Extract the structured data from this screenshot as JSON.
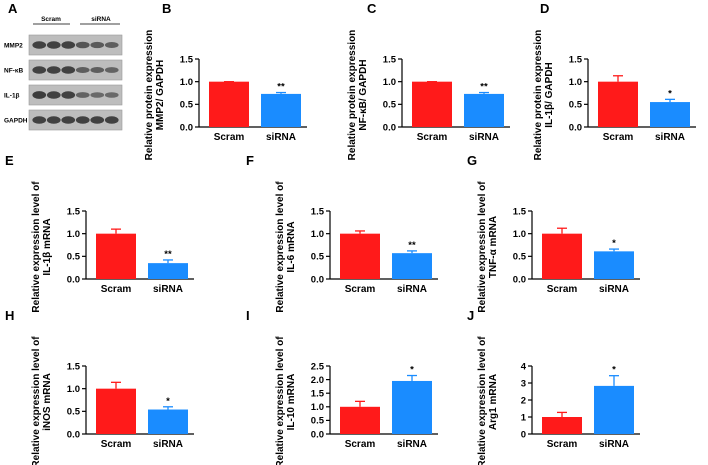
{
  "colors": {
    "scram": "#ff1a1a",
    "sirna": "#1a8cff",
    "axis": "#000000",
    "blot_bg": "#bdbdbd",
    "band": "#303030"
  },
  "blot": {
    "letter": "A",
    "groups": [
      "Scram",
      "siRNA"
    ],
    "rows": [
      {
        "label": "MMP2",
        "intensity": [
          0.9,
          0.9,
          0.9,
          0.7,
          0.65,
          0.6
        ]
      },
      {
        "label": "NF-κB",
        "intensity": [
          0.9,
          0.9,
          0.9,
          0.6,
          0.6,
          0.55
        ]
      },
      {
        "label": "IL-1β",
        "intensity": [
          0.95,
          0.9,
          0.9,
          0.55,
          0.5,
          0.5
        ]
      },
      {
        "label": "GAPDH",
        "intensity": [
          0.9,
          0.9,
          0.9,
          0.9,
          0.9,
          0.9
        ]
      }
    ]
  },
  "chart_data": [
    {
      "letter": "B",
      "type": "bar",
      "title": "",
      "ylabel": [
        "Relative protein expression",
        "MMP2/ GAPDH"
      ],
      "xlabel": "",
      "categories": [
        "Scram",
        "siRNA"
      ],
      "values": [
        1.0,
        0.73
      ],
      "errors": [
        0.0,
        0.03
      ],
      "annotations": [
        "",
        "**"
      ],
      "ylim": [
        0,
        1.5
      ],
      "yticks": [
        "0.0",
        "0.5",
        "1.0",
        "1.5"
      ]
    },
    {
      "letter": "C",
      "type": "bar",
      "title": "",
      "ylabel": [
        "Relative protein expression",
        "NF-κB/ GAPDH"
      ],
      "xlabel": "",
      "categories": [
        "Scram",
        "siRNA"
      ],
      "values": [
        1.0,
        0.73
      ],
      "errors": [
        0.0,
        0.03
      ],
      "annotations": [
        "",
        "**"
      ],
      "ylim": [
        0,
        1.5
      ],
      "yticks": [
        "0.0",
        "0.5",
        "1.0",
        "1.5"
      ]
    },
    {
      "letter": "D",
      "type": "bar",
      "title": "",
      "ylabel": [
        "Relative protein expression",
        "IL-1β/ GAPDH"
      ],
      "xlabel": "",
      "categories": [
        "Scram",
        "siRNA"
      ],
      "values": [
        1.0,
        0.55
      ],
      "errors": [
        0.13,
        0.06
      ],
      "annotations": [
        "",
        "*"
      ],
      "ylim": [
        0,
        1.5
      ],
      "yticks": [
        "0.0",
        "0.5",
        "1.0",
        "1.5"
      ]
    },
    {
      "letter": "E",
      "type": "bar",
      "title": "",
      "ylabel": [
        "Relative expression level of",
        "IL-1β mRNA"
      ],
      "xlabel": "",
      "categories": [
        "Scram",
        "siRNA"
      ],
      "values": [
        1.0,
        0.35
      ],
      "errors": [
        0.1,
        0.07
      ],
      "annotations": [
        "",
        "**"
      ],
      "ylim": [
        0,
        1.5
      ],
      "yticks": [
        "0.0",
        "0.5",
        "1.0",
        "1.5"
      ]
    },
    {
      "letter": "F",
      "type": "bar",
      "title": "",
      "ylabel": [
        "Relative expression level of",
        "IL-6 mRNA"
      ],
      "xlabel": "",
      "categories": [
        "Scram",
        "siRNA"
      ],
      "values": [
        1.0,
        0.57
      ],
      "errors": [
        0.06,
        0.05
      ],
      "annotations": [
        "",
        "**"
      ],
      "ylim": [
        0,
        1.5
      ],
      "yticks": [
        "0.0",
        "0.5",
        "1.0",
        "1.5"
      ]
    },
    {
      "letter": "G",
      "type": "bar",
      "title": "",
      "ylabel": [
        "Relative expression level of",
        "TNF-α mRNA"
      ],
      "xlabel": "",
      "categories": [
        "Scram",
        "siRNA"
      ],
      "values": [
        1.0,
        0.61
      ],
      "errors": [
        0.12,
        0.05
      ],
      "annotations": [
        "",
        "*"
      ],
      "ylim": [
        0,
        1.5
      ],
      "yticks": [
        "0.0",
        "0.5",
        "1.0",
        "1.5"
      ]
    },
    {
      "letter": "H",
      "type": "bar",
      "title": "",
      "ylabel": [
        "Relative expression level of",
        "iNOS mRNA"
      ],
      "xlabel": "",
      "categories": [
        "Scram",
        "siRNA"
      ],
      "values": [
        1.0,
        0.54
      ],
      "errors": [
        0.14,
        0.06
      ],
      "annotations": [
        "",
        "*"
      ],
      "ylim": [
        0,
        1.5
      ],
      "yticks": [
        "0.0",
        "0.5",
        "1.0",
        "1.5"
      ]
    },
    {
      "letter": "I",
      "type": "bar",
      "title": "",
      "ylabel": [
        "Relative expression level of",
        "IL-10 mRNA"
      ],
      "xlabel": "",
      "categories": [
        "Scram",
        "siRNA"
      ],
      "values": [
        1.0,
        1.95
      ],
      "errors": [
        0.2,
        0.2
      ],
      "annotations": [
        "",
        "*"
      ],
      "ylim": [
        0,
        2.5
      ],
      "yticks": [
        "0.0",
        "0.5",
        "1.0",
        "1.5",
        "2.0",
        "2.5"
      ]
    },
    {
      "letter": "J",
      "type": "bar",
      "title": "",
      "ylabel": [
        "Relative expression level of",
        "Arg1 mRNA"
      ],
      "xlabel": "",
      "categories": [
        "Scram",
        "siRNA"
      ],
      "values": [
        1.0,
        2.83
      ],
      "errors": [
        0.27,
        0.6
      ],
      "annotations": [
        "",
        "*"
      ],
      "ylim": [
        0,
        4
      ],
      "yticks": [
        "0",
        "1",
        "2",
        "3",
        "4"
      ]
    }
  ]
}
